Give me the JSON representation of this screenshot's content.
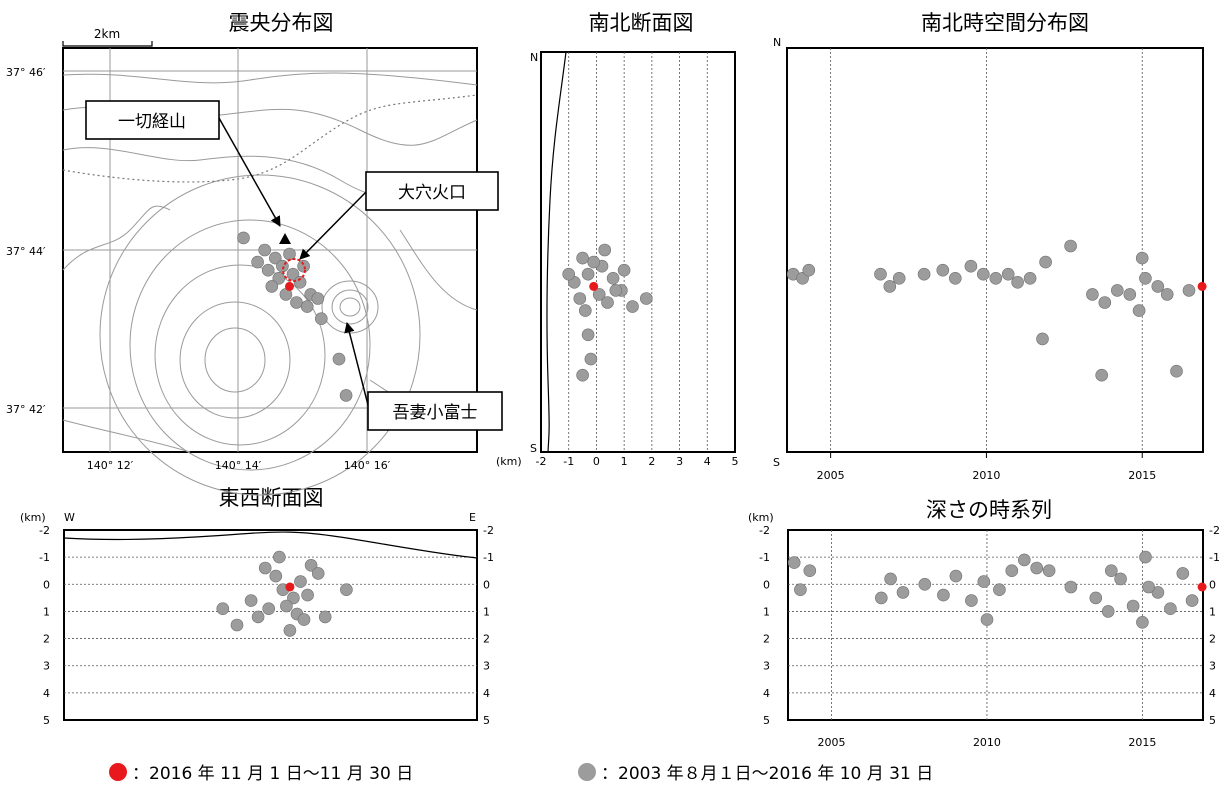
{
  "chart_data": [
    {
      "type": "scatter",
      "title": "震央分布図",
      "scale_bar": "2km",
      "x_ticks": [
        "140° 12′",
        "140° 14′",
        "140° 16′"
      ],
      "y_ticks": [
        "37° 46′",
        "37° 44′",
        "37° 42′"
      ],
      "xlim": [
        140.183,
        140.3
      ],
      "ylim": [
        37.683,
        37.783
      ],
      "annotations": [
        {
          "label": "一切経山",
          "lon": 140.244,
          "lat": 37.735,
          "marker": "triangle"
        },
        {
          "label": "大穴火口",
          "lon": 140.247,
          "lat": 37.731,
          "marker": "dashed-circle"
        },
        {
          "label": "吾妻小富士",
          "lon": 140.258,
          "lat": 37.721,
          "marker": "crater"
        }
      ],
      "series": [
        {
          "name": "2016 年 11 月 1 日〜11 月 30 日",
          "color": "#e8191c",
          "points": [
            [
              140.247,
              37.724
            ]
          ]
        },
        {
          "name": "2003 年８月１日〜2016 年 10 月 31 日",
          "color": "#9c9c9c",
          "points": [
            [
              140.24,
              37.733
            ],
            [
              140.243,
              37.731
            ],
            [
              140.245,
              37.729
            ],
            [
              140.248,
              37.727
            ],
            [
              140.25,
              37.725
            ],
            [
              140.246,
              37.722
            ],
            [
              140.249,
              37.72
            ],
            [
              140.252,
              37.719
            ],
            [
              140.244,
              37.726
            ],
            [
              140.241,
              37.728
            ],
            [
              140.253,
              37.722
            ],
            [
              140.251,
              37.729
            ],
            [
              140.238,
              37.73
            ],
            [
              140.256,
              37.716
            ],
            [
              140.261,
              37.706
            ],
            [
              140.263,
              37.697
            ],
            [
              140.234,
              37.736
            ],
            [
              140.255,
              37.721
            ],
            [
              140.247,
              37.732
            ],
            [
              140.242,
              37.724
            ]
          ]
        }
      ]
    },
    {
      "type": "scatter",
      "title": "南北断面図",
      "x_label": "(km)",
      "x_ticks": [
        "-2",
        "-1",
        "0",
        "1",
        "2",
        "3",
        "4",
        "5"
      ],
      "xlim": [
        -2,
        5
      ],
      "y_end_labels": [
        "N",
        "S"
      ],
      "series": [
        {
          "name": "2016 年 11 月 1 日〜11 月 30 日",
          "color": "#e8191c",
          "points": [
            [
              -0.1,
              37.724
            ]
          ]
        },
        {
          "name": "2003 年８月１日〜2016 年 10 月 31 日",
          "color": "#9c9c9c",
          "points": [
            [
              -0.5,
              37.731
            ],
            [
              0.2,
              37.729
            ],
            [
              -0.3,
              37.727
            ],
            [
              0.6,
              37.726
            ],
            [
              -0.8,
              37.725
            ],
            [
              0.9,
              37.723
            ],
            [
              0.1,
              37.722
            ],
            [
              -0.6,
              37.721
            ],
            [
              0.4,
              37.72
            ],
            [
              1.3,
              37.719
            ],
            [
              -0.4,
              37.718
            ],
            [
              -0.3,
              37.712
            ],
            [
              -0.2,
              37.706
            ],
            [
              -0.5,
              37.702
            ],
            [
              0.7,
              37.723
            ],
            [
              -1.0,
              37.727
            ],
            [
              1.0,
              37.728
            ],
            [
              0.3,
              37.733
            ],
            [
              1.8,
              37.721
            ],
            [
              -0.1,
              37.73
            ]
          ]
        }
      ]
    },
    {
      "type": "scatter",
      "title": "南北時空間分布図",
      "x_ticks": [
        "2005",
        "2010",
        "2015"
      ],
      "xlim": [
        2003.6,
        2016.95
      ],
      "y_end_labels": [
        "N",
        "S"
      ],
      "series": [
        {
          "name": "2016 年 11 月 1 日〜11 月 30 日",
          "color": "#e8191c",
          "points": [
            [
              2016.92,
              37.724
            ]
          ]
        },
        {
          "name": "2003 年８月１日〜2016 年 10 月 31 日",
          "color": "#9c9c9c",
          "points": [
            [
              2003.8,
              37.727
            ],
            [
              2004.1,
              37.726
            ],
            [
              2004.3,
              37.728
            ],
            [
              2006.6,
              37.727
            ],
            [
              2006.9,
              37.724
            ],
            [
              2007.2,
              37.726
            ],
            [
              2008.0,
              37.727
            ],
            [
              2008.6,
              37.728
            ],
            [
              2009.0,
              37.726
            ],
            [
              2009.5,
              37.729
            ],
            [
              2009.9,
              37.727
            ],
            [
              2010.3,
              37.726
            ],
            [
              2010.7,
              37.727
            ],
            [
              2011.0,
              37.725
            ],
            [
              2011.4,
              37.726
            ],
            [
              2011.9,
              37.73
            ],
            [
              2012.7,
              37.734
            ],
            [
              2013.4,
              37.722
            ],
            [
              2013.8,
              37.72
            ],
            [
              2014.2,
              37.723
            ],
            [
              2014.6,
              37.722
            ],
            [
              2015.0,
              37.731
            ],
            [
              2015.1,
              37.726
            ],
            [
              2015.5,
              37.724
            ],
            [
              2015.8,
              37.722
            ],
            [
              2016.5,
              37.723
            ],
            [
              2011.8,
              37.711
            ],
            [
              2013.7,
              37.702
            ],
            [
              2016.1,
              37.703
            ],
            [
              2014.9,
              37.718
            ]
          ]
        }
      ]
    },
    {
      "type": "scatter",
      "title": "東西断面図",
      "x_end_labels": [
        "W",
        "E"
      ],
      "y_label": "(km)",
      "y_ticks": [
        "-2",
        "-1",
        "0",
        "1",
        "2",
        "3",
        "4",
        "5"
      ],
      "ylim": [
        -2,
        5
      ],
      "series": [
        {
          "name": "2016 年 11 月 1 日〜11 月 30 日",
          "color": "#e8191c",
          "points": [
            [
              140.247,
              0.1
            ]
          ]
        },
        {
          "name": "2003 年８月１日〜2016 年 10 月 31 日",
          "color": "#9c9c9c",
          "points": [
            [
              140.24,
              -0.6
            ],
            [
              140.243,
              -0.3
            ],
            [
              140.245,
              0.2
            ],
            [
              140.248,
              0.5
            ],
            [
              140.25,
              -0.1
            ],
            [
              140.246,
              0.8
            ],
            [
              140.249,
              1.1
            ],
            [
              140.252,
              0.4
            ],
            [
              140.244,
              -1.0
            ],
            [
              140.241,
              0.9
            ],
            [
              140.253,
              -0.7
            ],
            [
              140.251,
              1.3
            ],
            [
              140.238,
              1.2
            ],
            [
              140.232,
              1.5
            ],
            [
              140.228,
              0.9
            ],
            [
              140.263,
              0.2
            ],
            [
              140.257,
              1.2
            ],
            [
              140.255,
              -0.4
            ],
            [
              140.247,
              1.7
            ],
            [
              140.236,
              0.6
            ]
          ]
        }
      ]
    },
    {
      "type": "scatter",
      "title": "深さの時系列",
      "y_label": "(km)",
      "x_ticks": [
        "2005",
        "2010",
        "2015"
      ],
      "y_ticks": [
        "-2",
        "-1",
        "0",
        "1",
        "2",
        "3",
        "4",
        "5"
      ],
      "xlim": [
        2003.6,
        2016.95
      ],
      "ylim": [
        -2,
        5
      ],
      "series": [
        {
          "name": "2016 年 11 月 1 日〜11 月 30 日",
          "color": "#e8191c",
          "points": [
            [
              2016.92,
              0.1
            ]
          ]
        },
        {
          "name": "2003 年８月１日〜2016 年 10 月 31 日",
          "color": "#9c9c9c",
          "points": [
            [
              2003.8,
              -0.8
            ],
            [
              2004.0,
              0.2
            ],
            [
              2004.3,
              -0.5
            ],
            [
              2006.6,
              0.5
            ],
            [
              2006.9,
              -0.2
            ],
            [
              2007.3,
              0.3
            ],
            [
              2008.0,
              0.0
            ],
            [
              2008.6,
              0.4
            ],
            [
              2009.0,
              -0.3
            ],
            [
              2009.5,
              0.6
            ],
            [
              2009.9,
              -0.1
            ],
            [
              2010.0,
              1.3
            ],
            [
              2010.4,
              0.2
            ],
            [
              2010.8,
              -0.5
            ],
            [
              2011.2,
              -0.9
            ],
            [
              2011.6,
              -0.6
            ],
            [
              2012.0,
              -0.5
            ],
            [
              2012.7,
              0.1
            ],
            [
              2013.5,
              0.5
            ],
            [
              2013.9,
              1.0
            ],
            [
              2014.3,
              -0.2
            ],
            [
              2014.7,
              0.8
            ],
            [
              2015.0,
              1.4
            ],
            [
              2015.1,
              -1.0
            ],
            [
              2015.5,
              0.3
            ],
            [
              2015.9,
              0.9
            ],
            [
              2016.3,
              -0.4
            ],
            [
              2016.6,
              0.6
            ],
            [
              2015.2,
              0.1
            ],
            [
              2014.0,
              -0.5
            ]
          ]
        }
      ]
    }
  ],
  "legend": {
    "red_text": "：2016 年 11 月 1 日〜11 月 30 日",
    "gray_text": "：2003 年８月１日〜2016 年 10 月 31 日"
  }
}
